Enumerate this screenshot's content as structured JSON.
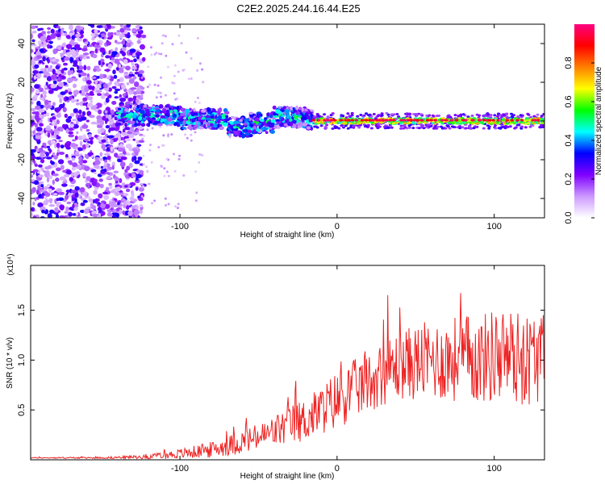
{
  "title": "C2E2.2025.244.16.44.E25",
  "chart_data": [
    {
      "type": "heatmap",
      "name": "spectrogram",
      "xlabel": "Height of straight line (km)",
      "ylabel": "Frequency (Hz)",
      "xlim": [
        -195,
        132
      ],
      "ylim": [
        -50,
        50
      ],
      "xticks": [
        -100,
        0,
        100
      ],
      "yticks": [
        -40,
        -20,
        0,
        20,
        40
      ],
      "colorbar": {
        "label": "Normalized spectral amplitude",
        "range": [
          0,
          1
        ],
        "ticks": [
          "0.0",
          "0.2",
          "0.4",
          "0.6",
          "0.8"
        ],
        "colors": [
          "#ffffff",
          "#cc99ff",
          "#7f00ff",
          "#0000ff",
          "#00ffff",
          "#00ff00",
          "#ffff00",
          "#ff7f00",
          "#ff0000",
          "#ff0080"
        ]
      },
      "regions": [
        {
          "name": "scattered noise",
          "x": [
            -195,
            -123
          ],
          "y": [
            -50,
            50
          ],
          "amplitude": 0.25
        },
        {
          "name": "signal band",
          "x": [
            -140,
            -15
          ],
          "y": [
            -5,
            8
          ],
          "amplitude": 0.4
        },
        {
          "name": "narrow band",
          "x": [
            -15,
            132
          ],
          "y": [
            -2,
            2
          ],
          "amplitude": 0.95
        }
      ]
    },
    {
      "type": "line",
      "name": "snr",
      "xlabel": "Height of straight line (km)",
      "ylabel": "SNR (10 * v/v)",
      "scale_label": "(x10⁴)",
      "xlim": [
        -195,
        132
      ],
      "ylim": [
        0,
        1.95
      ],
      "xticks": [
        -100,
        0,
        100
      ],
      "yticks": [
        0.5,
        1.0,
        1.5
      ],
      "ytick_labels": [
        "0.5",
        "1.0",
        "1.5"
      ],
      "series": [
        {
          "name": "SNR",
          "color": "#ee2222",
          "envelope": {
            "x": [
              -195,
              -150,
              -120,
              -100,
              -80,
              -60,
              -45,
              -30,
              -20,
              -10,
              0,
              10,
              20,
              30,
              40,
              50,
              60,
              70,
              80,
              90,
              100,
              110,
              120,
              132
            ],
            "mean": [
              0.02,
              0.02,
              0.03,
              0.06,
              0.1,
              0.18,
              0.25,
              0.35,
              0.4,
              0.5,
              0.6,
              0.7,
              0.78,
              0.88,
              0.95,
              0.98,
              1.0,
              1.0,
              1.02,
              1.0,
              1.05,
              1.05,
              1.0,
              1.05
            ],
            "spread": [
              0.005,
              0.008,
              0.02,
              0.05,
              0.08,
              0.12,
              0.15,
              0.2,
              0.22,
              0.25,
              0.3,
              0.3,
              0.3,
              0.33,
              0.35,
              0.38,
              0.4,
              0.42,
              0.45,
              0.45,
              0.48,
              0.48,
              0.48,
              0.45
            ]
          }
        }
      ]
    }
  ]
}
